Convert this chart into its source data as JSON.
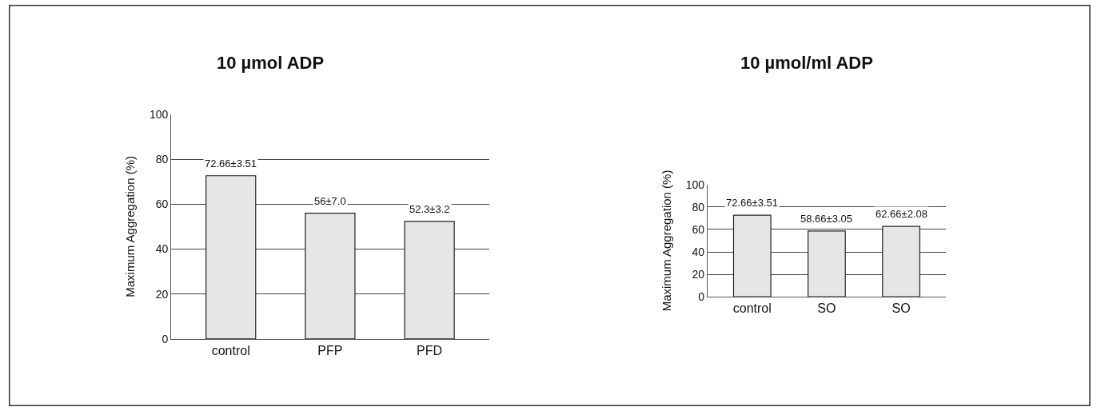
{
  "chart_data": [
    {
      "type": "bar",
      "title": "10 µmol ADP",
      "ylabel": "Maximum Aggregation (%)",
      "categories": [
        "control",
        "PFP",
        "PFD"
      ],
      "values": [
        72.66,
        56,
        52.3
      ],
      "value_labels": [
        "72.66±3.51",
        "56±7.0",
        "52.3±3.2"
      ],
      "color": "#e6e6e6",
      "ylim": [
        0,
        100
      ],
      "yticks": [
        0,
        20,
        40,
        60,
        80,
        100
      ],
      "grid": "y"
    },
    {
      "type": "bar",
      "title": "10 µmol/ml ADP",
      "ylabel": "Maximum Aggregation (%)",
      "categories": [
        "control",
        "SO",
        "SO"
      ],
      "values": [
        72.66,
        58.66,
        62.66
      ],
      "value_labels": [
        "72.66±3.51",
        "58.66±3.05",
        "62.66±2.08"
      ],
      "color": "#e6e6e6",
      "ylim": [
        0,
        100
      ],
      "yticks": [
        0,
        20,
        40,
        60,
        80,
        100
      ],
      "grid": "y"
    }
  ]
}
